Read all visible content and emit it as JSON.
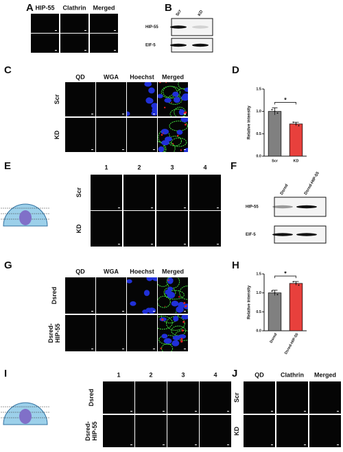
{
  "panels": {
    "A": {
      "letter": "A",
      "columns": [
        "HIP-55",
        "Clathrin",
        "Merged"
      ]
    },
    "B": {
      "letter": "B",
      "lanes": [
        "Scr",
        "KD"
      ],
      "bands": [
        "HIP-55",
        "EIF-5"
      ]
    },
    "C": {
      "letter": "C",
      "columns": [
        "QD",
        "WGA",
        "Hoechst",
        "Merged"
      ],
      "rows": [
        [
          "Scr"
        ],
        [
          "KD"
        ]
      ]
    },
    "E": {
      "letter": "E",
      "columns": [
        "1",
        "2",
        "3",
        "4"
      ],
      "rows": [
        [
          "Scr"
        ],
        [
          "KD"
        ]
      ]
    },
    "F": {
      "letter": "F",
      "lanes": [
        "Dsred",
        "Dsred-HIP-55"
      ],
      "bands": [
        "HIP-55",
        "EIF-5"
      ]
    },
    "G": {
      "letter": "G",
      "columns": [
        "QD",
        "WGA",
        "Hoechst",
        "Merged"
      ],
      "rows": [
        [
          "Dsred"
        ],
        [
          "Dsred-",
          "HIP-55"
        ]
      ]
    },
    "I": {
      "letter": "I",
      "columns": [
        "1",
        "2",
        "3",
        "4"
      ],
      "rows": [
        [
          "Dsred"
        ],
        [
          "Dsred-",
          "HIP-55"
        ]
      ]
    },
    "J": {
      "letter": "J",
      "columns": [
        "QD",
        "Clathrin",
        "Merged"
      ],
      "rows": [
        [
          "Scr"
        ],
        [
          "KD"
        ]
      ]
    }
  },
  "chart_data": [
    {
      "panel": "D",
      "type": "bar",
      "categories": [
        "Scr",
        "KD"
      ],
      "values": [
        1.0,
        0.72
      ],
      "errors": [
        0.08,
        0.04
      ],
      "colors": [
        "#808080",
        "#e8403c"
      ],
      "ylabel": "Relative intensity",
      "ylim": [
        0,
        1.5
      ],
      "yticks": [
        {
          "value": 0,
          "label": "0.0"
        },
        {
          "value": 0.5,
          "label": "0.5"
        },
        {
          "value": 1,
          "label": "1.0"
        },
        {
          "value": 1.5,
          "label": "1.5"
        }
      ],
      "annotation": "*"
    },
    {
      "panel": "H",
      "type": "bar",
      "categories": [
        "Dsred",
        "Dsred-HIP-55"
      ],
      "values": [
        1.0,
        1.25
      ],
      "errors": [
        0.07,
        0.05
      ],
      "colors": [
        "#808080",
        "#e8403c"
      ],
      "ylabel": "Relative intensity",
      "ylim": [
        0,
        1.5
      ],
      "yticks": [
        {
          "value": 0,
          "label": "0.0"
        },
        {
          "value": 0.5,
          "label": "0.5"
        },
        {
          "value": 1,
          "label": "1.0"
        },
        {
          "value": 1.5,
          "label": "1.5"
        }
      ],
      "annotation": "*"
    }
  ]
}
